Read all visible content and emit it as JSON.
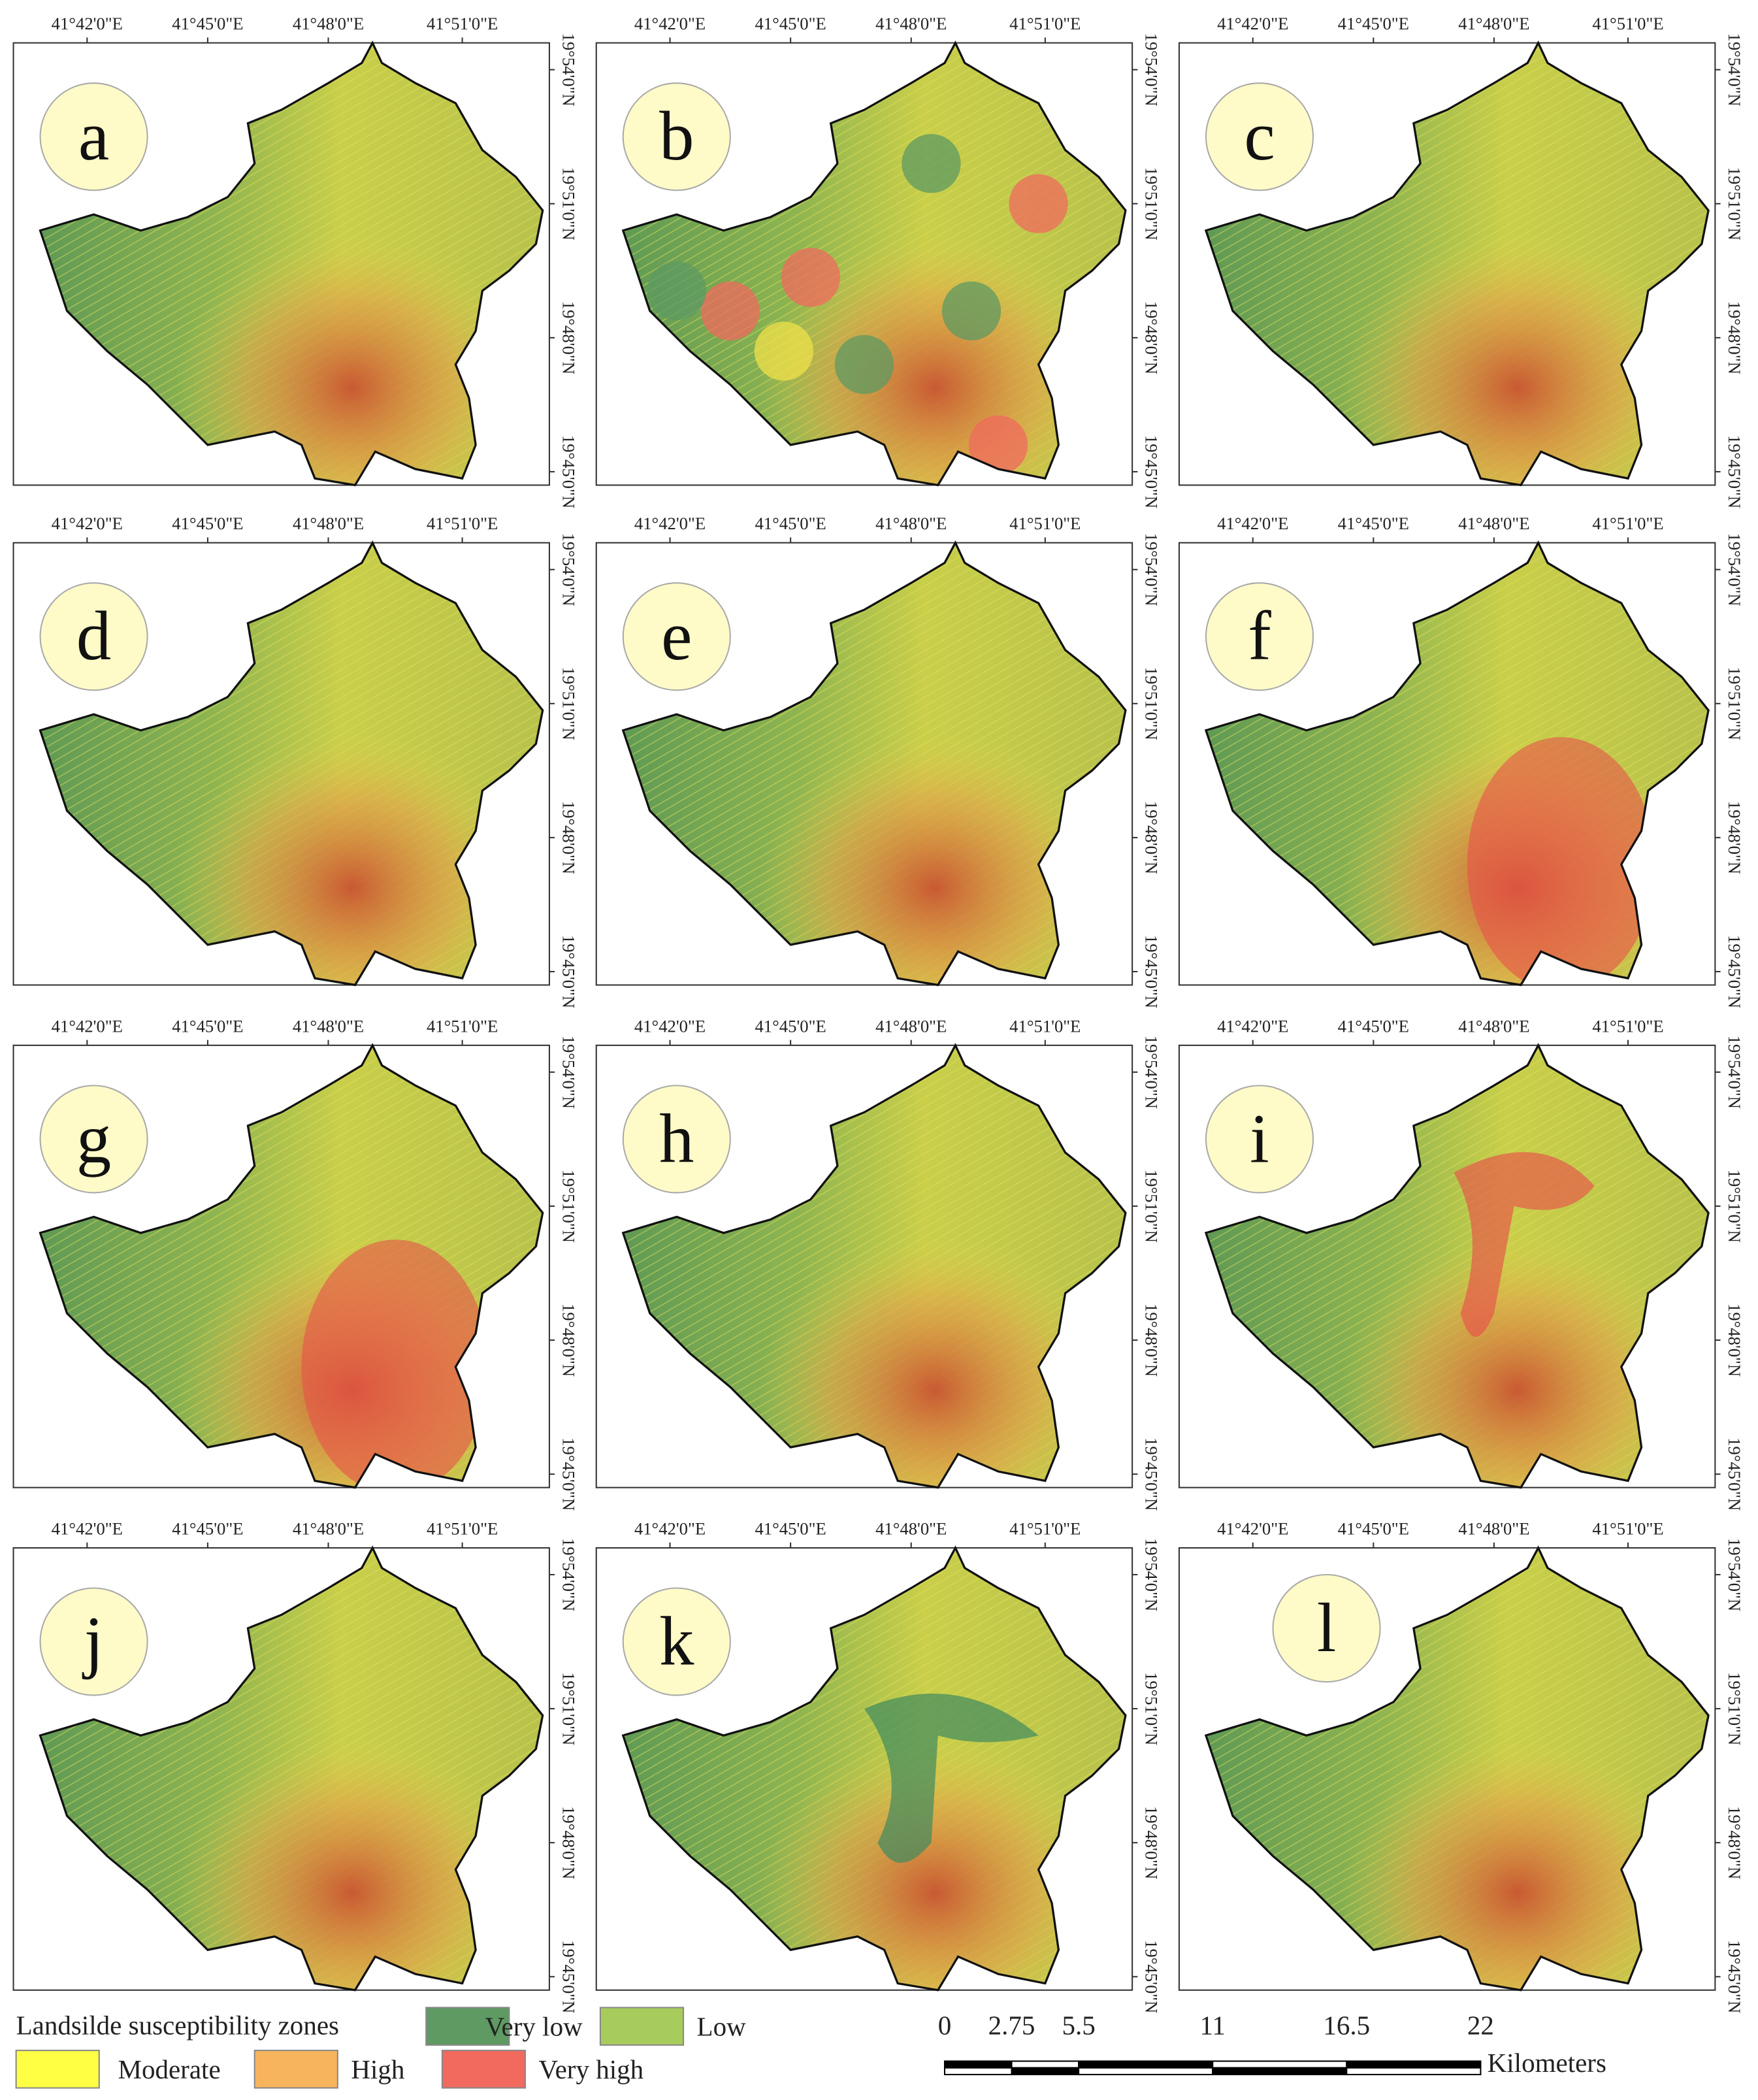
{
  "panels": [
    {
      "label": "a"
    },
    {
      "label": "b"
    },
    {
      "label": "c"
    },
    {
      "label": "d"
    },
    {
      "label": "e"
    },
    {
      "label": "f"
    },
    {
      "label": "g"
    },
    {
      "label": "h"
    },
    {
      "label": "i"
    },
    {
      "label": "j"
    },
    {
      "label": "k"
    },
    {
      "label": "l"
    }
  ],
  "longitude_labels": [
    "41°42'0\"E",
    "41°45'0\"E",
    "41°48'0\"E",
    "41°51'0\"E"
  ],
  "latitude_labels": [
    "19°54'0\"N",
    "19°51'0\"N",
    "19°48'0\"N",
    "19°45'0\"N"
  ],
  "legend": {
    "title": "Landsilde susceptibility zones",
    "zones": [
      {
        "name": "Very low",
        "color": "#5e9a62"
      },
      {
        "name": "Low",
        "color": "#a8cc5c"
      },
      {
        "name": "Moderate",
        "color": "#ffff44"
      },
      {
        "name": "High",
        "color": "#f8b45c"
      },
      {
        "name": "Very high",
        "color": "#f26a5e"
      }
    ]
  },
  "scale_bar": {
    "ticks": [
      0,
      2.75,
      5.5,
      11,
      16.5,
      22
    ],
    "unit": "Kilometers"
  }
}
